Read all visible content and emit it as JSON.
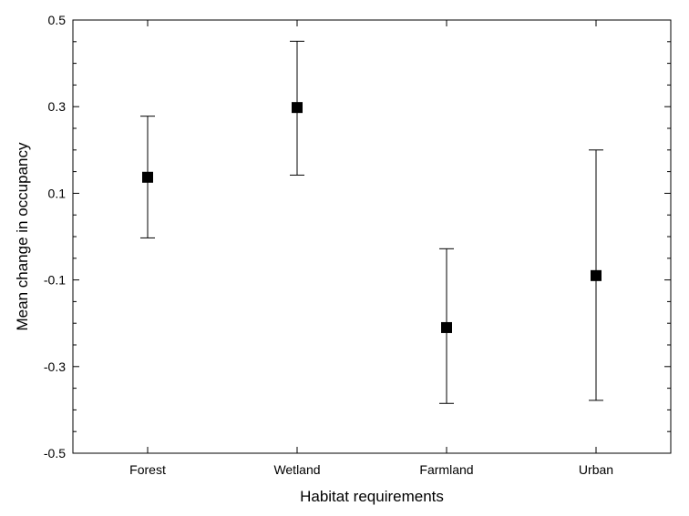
{
  "chart_data": {
    "type": "scatter",
    "title": "",
    "xlabel": "Habitat requirements",
    "ylabel": "Mean change in occupancy",
    "categories": [
      "Forest",
      "Wetland",
      "Farmland",
      "Urban"
    ],
    "mean": [
      0.137,
      0.298,
      -0.21,
      -0.09
    ],
    "lower": [
      -0.003,
      0.142,
      -0.385,
      -0.378
    ],
    "upper": [
      0.278,
      0.451,
      -0.028,
      0.2
    ],
    "ylim": [
      -0.5,
      0.5
    ],
    "yticks": [
      "-0.5",
      "-0.3",
      "-0.1",
      "0.1",
      "0.3",
      "0.5"
    ],
    "ytick_values": [
      -0.5,
      -0.3,
      -0.1,
      0.1,
      0.3,
      0.5
    ],
    "y_minor_step": 0.05,
    "marker": "square",
    "marker_color": "#000000",
    "grid": false,
    "legend": "none"
  }
}
